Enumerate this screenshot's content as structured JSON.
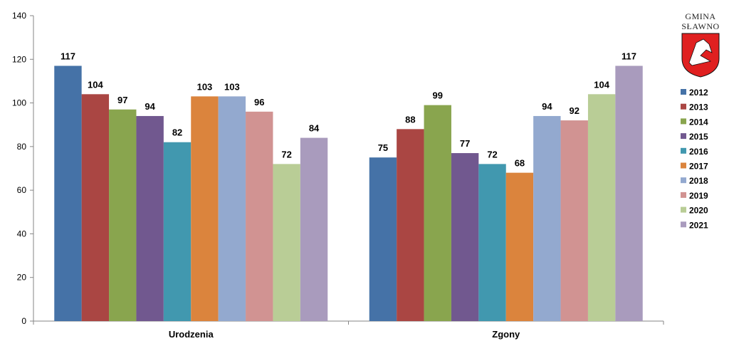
{
  "logo": {
    "line1": "GMINA",
    "line2": "SŁAWNO",
    "shield_color": "#e02020"
  },
  "chart_data": {
    "type": "bar",
    "categories": [
      "Urodzenia",
      "Zgony"
    ],
    "ylim": [
      0,
      140
    ],
    "yticks": [
      0,
      20,
      40,
      60,
      80,
      100,
      120,
      140
    ],
    "grid": false,
    "legend_position": "right",
    "series": [
      {
        "name": "2012",
        "color": "#4572a7",
        "values": [
          117,
          75
        ]
      },
      {
        "name": "2013",
        "color": "#aa4643",
        "values": [
          104,
          88
        ]
      },
      {
        "name": "2014",
        "color": "#89a54e",
        "values": [
          97,
          99
        ]
      },
      {
        "name": "2015",
        "color": "#71588f",
        "values": [
          94,
          77
        ]
      },
      {
        "name": "2016",
        "color": "#4198af",
        "values": [
          82,
          72
        ]
      },
      {
        "name": "2017",
        "color": "#db843d",
        "values": [
          103,
          68
        ]
      },
      {
        "name": "2018",
        "color": "#93a9cf",
        "values": [
          103,
          94
        ]
      },
      {
        "name": "2019",
        "color": "#d19392",
        "values": [
          96,
          92
        ]
      },
      {
        "name": "2020",
        "color": "#b9cd96",
        "values": [
          72,
          104
        ]
      },
      {
        "name": "2021",
        "color": "#a99bbd",
        "values": [
          84,
          117
        ]
      }
    ]
  }
}
